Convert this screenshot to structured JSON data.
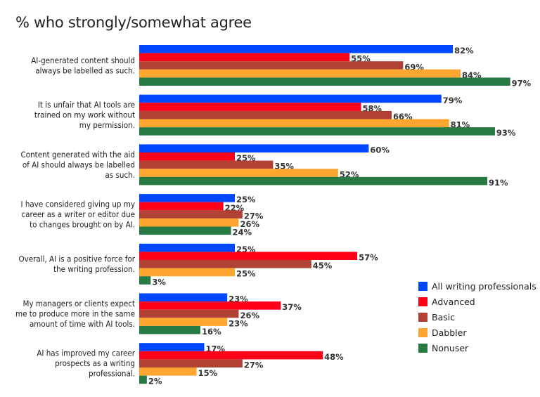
{
  "chart_data": {
    "type": "bar",
    "orientation": "horizontal",
    "title": "% who strongly/somewhat agree",
    "categories": [
      [
        "AI-generated content should",
        "always be labelled as such."
      ],
      [
        "It is unfair that AI tools are",
        "trained on my work without",
        "my permission."
      ],
      [
        "Content generated with the aid",
        "of AI should always be labelled",
        "as such."
      ],
      [
        "I have considered giving up my",
        "career as a writer or editor due",
        "to changes brought on by AI."
      ],
      [
        "Overall, AI is a positive force for",
        "the writing profession."
      ],
      [
        "My managers or clients expect",
        "me to produce more in the same",
        "amount of time with AI tools."
      ],
      [
        "AI has improved my career",
        "prospects as a writing",
        "professional."
      ]
    ],
    "series": [
      {
        "name": "All writing professionals",
        "color": "#0047ff",
        "values": [
          82,
          79,
          60,
          25,
          25,
          23,
          17
        ]
      },
      {
        "name": "Advanced",
        "color": "#ff0019",
        "values": [
          55,
          58,
          25,
          22,
          57,
          37,
          48
        ]
      },
      {
        "name": "Basic",
        "color": "#b04134",
        "values": [
          69,
          66,
          35,
          27,
          45,
          26,
          27
        ]
      },
      {
        "name": "Dabbler",
        "color": "#ffa630",
        "values": [
          84,
          81,
          52,
          26,
          25,
          23,
          15
        ]
      },
      {
        "name": "Nonuser",
        "color": "#287a45",
        "values": [
          97,
          93,
          91,
          24,
          3,
          16,
          2
        ]
      }
    ],
    "value_suffix": "%",
    "xlim": [
      0,
      100
    ],
    "grid": false,
    "legend_position": "right"
  }
}
